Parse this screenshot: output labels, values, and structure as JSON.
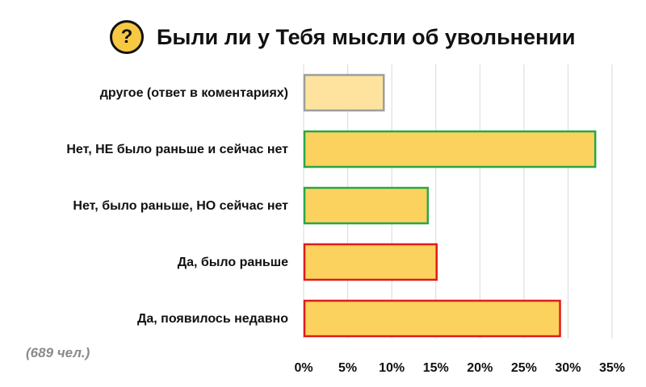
{
  "header": {
    "badge_symbol": "?",
    "title": "Были ли у Тебя мысли об увольнении"
  },
  "note": "(689 чел.)",
  "colors": {
    "bar_fill": "#fcd25f",
    "bar_fill_light": "#fde39e",
    "border_green": "#27a845",
    "border_red": "#e01b1b",
    "border_neutral": "#9e9e9e",
    "gridline": "#d9d9d9",
    "badge": "#f7c942"
  },
  "chart_data": {
    "type": "bar",
    "orientation": "horizontal",
    "title": "Были ли у Тебя мысли об увольнении",
    "categories": [
      "другое (ответ в коментариях)",
      "Нет, НЕ было раньше и сейчас нет",
      "Нет, было раньше, НО сейчас нет",
      "Да, было раньше",
      "Да, появилось недавно"
    ],
    "values": [
      9,
      33,
      14,
      15,
      29
    ],
    "bar_colors": [
      "#fde39e",
      "#fcd25f",
      "#fcd25f",
      "#fcd25f",
      "#fcd25f"
    ],
    "border_colors": [
      "#9e9e9e",
      "#27a845",
      "#27a845",
      "#e01b1b",
      "#e01b1b"
    ],
    "xlim": [
      0,
      35
    ],
    "xticks": [
      "0%",
      "5%",
      "10%",
      "15%",
      "20%",
      "25%",
      "30%",
      "35%"
    ],
    "grid": true,
    "legend": "none"
  }
}
